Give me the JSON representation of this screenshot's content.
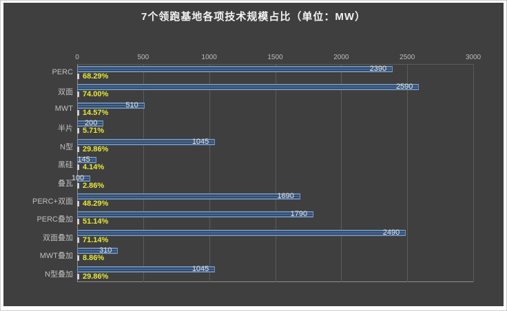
{
  "title": "7个领跑基地各项技术规模占比（单位：MW）",
  "colors": {
    "panel_background": "#3f3f3f",
    "bar_edge": "#7496bd",
    "bar_dark_fill": "#2c3e57",
    "bar_center_stripe": "#4c6f9e",
    "value_label": "#e3e3e3",
    "percent_label": "#e8e83a",
    "axis_text": "#bdbdbd",
    "title_text": "#f2f2f2",
    "gridline": "#5c5c5c"
  },
  "chart_data": {
    "type": "bar",
    "orientation": "horizontal",
    "title": "7个领跑基地各项技术规模占比（单位：MW）",
    "unit": "MW",
    "xlim": [
      0,
      3000
    ],
    "x_ticks": [
      "0",
      "500",
      "1000",
      "1500",
      "2000",
      "2500",
      "3000"
    ],
    "grid": "vertical",
    "legend": "none",
    "categories": [
      "PERC",
      "双面",
      "MWT",
      "半片",
      "N型",
      "黑硅",
      "叠瓦",
      "PERC+双面",
      "PERC叠加",
      "双面叠加",
      "MWT叠加",
      "N型叠加"
    ],
    "series": [
      {
        "name": "规模",
        "values": [
          2390,
          2590,
          510,
          200,
          1045,
          145,
          100,
          1690,
          1790,
          2490,
          310,
          1045
        ],
        "labels": [
          "2390",
          "2590",
          "510",
          "200",
          "1045",
          "145",
          "100",
          "1690",
          "1790",
          "2490",
          "310",
          "1045"
        ]
      },
      {
        "name": "占比",
        "values": [
          68.29,
          74.0,
          14.57,
          5.71,
          29.86,
          4.14,
          2.86,
          48.29,
          51.14,
          71.14,
          8.86,
          29.86
        ],
        "labels": [
          "68.29%",
          "74.00%",
          "14.57%",
          "5.71%",
          "29.86%",
          "4.14%",
          "2.86%",
          "48.29%",
          "51.14%",
          "71.14%",
          "8.86%",
          "29.86%"
        ]
      }
    ]
  }
}
